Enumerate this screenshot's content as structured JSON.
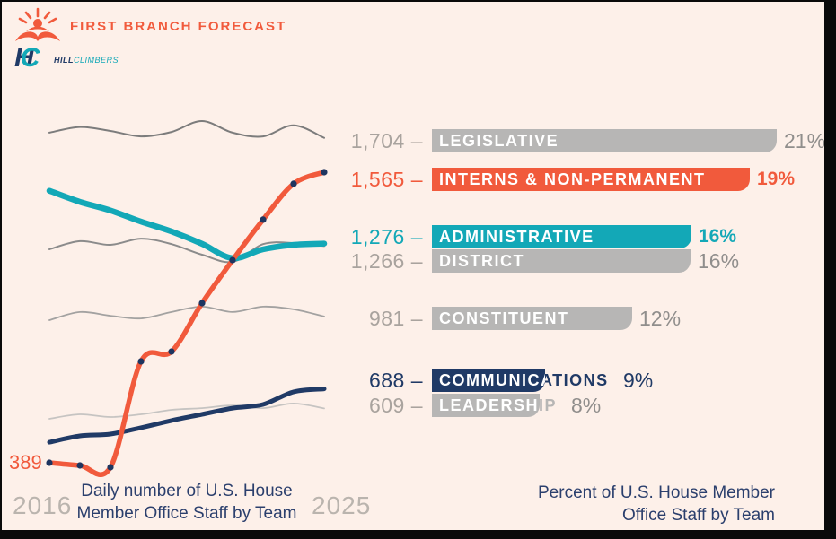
{
  "header": {
    "brand": "FIRST BRANCH FORECAST",
    "sub_brand_hill": "HILL",
    "sub_brand_climbers": "CLIMBERS",
    "hc_monogram_h": "H",
    "hc_monogram_c": "C"
  },
  "colors": {
    "background": "#fdf0e9",
    "orange": "#f15a3c",
    "teal": "#13a8b7",
    "navy": "#203a66",
    "gray_bar": "#b7b6b5",
    "gray_value": "#a9a39e",
    "gray_pct": "#908e8c",
    "caption_navy": "#2b3f6d",
    "dot_navy": "#1e3560"
  },
  "chart_data": {
    "type": "line",
    "x": [
      2016,
      2017,
      2018,
      2019,
      2020,
      2021,
      2022,
      2023,
      2024,
      2025
    ],
    "x_start_label": "2016",
    "x_end_label": "2025",
    "start_annotation": "389",
    "left_caption": "Daily number of U.S. House Member Office Staff by Team",
    "right_caption": "Percent of U.S. House Member Office Staff by Team",
    "legend_position": "right-labels",
    "grid": false,
    "ylim": [
      350,
      1800
    ],
    "series": [
      {
        "key": "legislative",
        "name": "LEGISLATIVE",
        "end_value": 1704,
        "pct": 21,
        "values": [
          1725,
          1748,
          1732,
          1710,
          1728,
          1772,
          1725,
          1710,
          1755,
          1704
        ]
      },
      {
        "key": "interns",
        "name": "INTERNS & NON-PERMANENT",
        "end_value": 1565,
        "pct": 19,
        "values": [
          389,
          378,
          371,
          799,
          839,
          1035,
          1209,
          1373,
          1518,
          1565
        ]
      },
      {
        "key": "administrative",
        "name": "ADMINISTRATIVE",
        "end_value": 1276,
        "pct": 16,
        "values": [
          1490,
          1445,
          1410,
          1365,
          1325,
          1275,
          1217,
          1253,
          1271,
          1276
        ]
      },
      {
        "key": "district",
        "name": "DISTRICT",
        "end_value": 1266,
        "pct": 16,
        "values": [
          1253,
          1286,
          1271,
          1296,
          1274,
          1231,
          1202,
          1274,
          1278,
          1266
        ]
      },
      {
        "key": "constituent",
        "name": "CONSTITUENT",
        "end_value": 981,
        "pct": 12,
        "values": [
          966,
          999,
          984,
          973,
          999,
          1021,
          999,
          1021,
          1010,
          981
        ]
      },
      {
        "key": "communications",
        "name": "COMMUNICATIONS",
        "end_value": 688,
        "pct": 9,
        "values": [
          472,
          498,
          505,
          531,
          560,
          585,
          610,
          625,
          676,
          688
        ]
      },
      {
        "key": "leadership",
        "name": "LEADERSHIP",
        "end_value": 609,
        "pct": 8,
        "values": [
          567,
          585,
          574,
          585,
          603,
          610,
          621,
          610,
          629,
          609
        ]
      }
    ]
  },
  "rows": [
    {
      "value_label": "1,704 –",
      "label": "LEGISLATIVE",
      "pct_label": "21%",
      "style": "gray"
    },
    {
      "value_label": "1,565 –",
      "label": "INTERNS & NON-PERMANENT",
      "pct_label": "19%",
      "style": "orange"
    },
    {
      "value_label": "1,276 –",
      "label": "ADMINISTRATIVE",
      "pct_label": "16%",
      "style": "teal"
    },
    {
      "value_label": "1,266 –",
      "label": "DISTRICT",
      "pct_label": "16%",
      "style": "gray"
    },
    {
      "value_label": "981 –",
      "label": "CONSTITUENT",
      "pct_label": "12%",
      "style": "gray"
    },
    {
      "value_label": "688 –",
      "label": "COMMUNICATIONS",
      "pct_label": "9%",
      "style": "navy"
    },
    {
      "value_label": "609 –",
      "label": "LEADERSHIP",
      "pct_label": "8%",
      "style": "gray"
    }
  ]
}
